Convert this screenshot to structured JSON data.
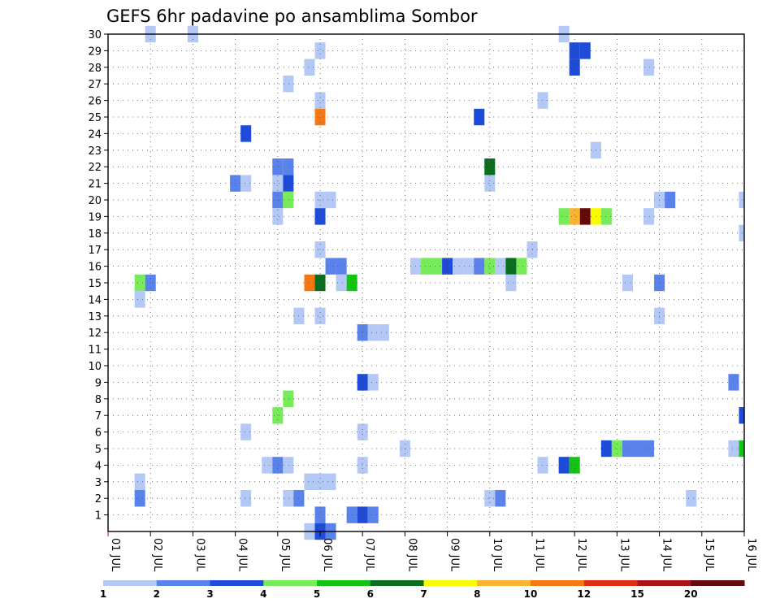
{
  "chart_data": {
    "type": "heatmap",
    "title": "GEFS 6hr padavine po ansamblima Sombor",
    "x_tick_labels": [
      "01 JUL",
      "02 JUL",
      "03 JUL",
      "04 JUL",
      "05 JUL",
      "06 JUL",
      "07 JUL",
      "08 JUL",
      "09 JUL",
      "10 JUL",
      "11 JUL",
      "12 JUL",
      "13 JUL",
      "14 JUL",
      "15 JUL",
      "16 JUL"
    ],
    "y_tick_labels": [
      "1",
      "2",
      "3",
      "4",
      "5",
      "6",
      "7",
      "8",
      "9",
      "10",
      "11",
      "12",
      "13",
      "14",
      "15",
      "16",
      "17",
      "18",
      "19",
      "20",
      "21",
      "22",
      "23",
      "24",
      "25",
      "26",
      "27",
      "28",
      "29",
      "30"
    ],
    "xlim_days": [
      1,
      16
    ],
    "ylim_member": [
      0,
      30
    ],
    "grid": "dotted",
    "color_levels": [
      "1",
      "2",
      "3",
      "4",
      "5",
      "6",
      "7",
      "8",
      "10",
      "12",
      "15",
      "20"
    ],
    "color_bins": [
      {
        "from": 1,
        "to": 2,
        "color": "#b4c8f5"
      },
      {
        "from": 2,
        "to": 3,
        "color": "#5a82eb"
      },
      {
        "from": 3,
        "to": 4,
        "color": "#1e4bd7"
      },
      {
        "from": 4,
        "to": 5,
        "color": "#78eb5a"
      },
      {
        "from": 5,
        "to": 6,
        "color": "#14c314"
      },
      {
        "from": 6,
        "to": 7,
        "color": "#0a6e1e"
      },
      {
        "from": 7,
        "to": 8,
        "color": "#fafa00"
      },
      {
        "from": 8,
        "to": 10,
        "color": "#fab432"
      },
      {
        "from": 10,
        "to": 12,
        "color": "#f57814"
      },
      {
        "from": 12,
        "to": 15,
        "color": "#e12d14"
      },
      {
        "from": 15,
        "to": 20,
        "color": "#aa1414"
      },
      {
        "from": 20,
        "to": null,
        "color": "#640a0a"
      }
    ],
    "cells": [
      [
        2.0,
        30,
        1
      ],
      [
        3.0,
        30,
        1
      ],
      [
        11.75,
        30,
        1
      ],
      [
        6.0,
        29,
        1
      ],
      [
        12.0,
        29,
        3
      ],
      [
        12.25,
        29,
        3
      ],
      [
        5.75,
        28,
        1
      ],
      [
        12.0,
        28,
        3
      ],
      [
        13.75,
        28,
        1
      ],
      [
        5.25,
        27,
        1
      ],
      [
        6.0,
        26,
        1
      ],
      [
        11.25,
        26,
        1
      ],
      [
        6.0,
        25,
        10
      ],
      [
        9.75,
        25,
        3
      ],
      [
        4.25,
        24,
        3
      ],
      [
        12.5,
        23,
        1
      ],
      [
        5.0,
        22,
        2
      ],
      [
        5.25,
        22,
        2
      ],
      [
        10.0,
        22,
        6
      ],
      [
        4.0,
        21,
        2
      ],
      [
        4.25,
        21,
        1
      ],
      [
        5.0,
        21,
        1
      ],
      [
        5.25,
        21,
        3
      ],
      [
        10.0,
        21,
        1
      ],
      [
        5.0,
        20,
        2
      ],
      [
        5.25,
        20,
        4
      ],
      [
        6.0,
        20,
        1
      ],
      [
        6.25,
        20,
        1
      ],
      [
        14.0,
        20,
        1
      ],
      [
        14.25,
        20,
        2
      ],
      [
        16.0,
        20,
        1
      ],
      [
        6.0,
        19,
        3
      ],
      [
        5.0,
        19,
        1
      ],
      [
        11.75,
        19,
        4
      ],
      [
        12.0,
        19,
        8
      ],
      [
        12.25,
        19,
        20
      ],
      [
        12.5,
        19,
        7
      ],
      [
        12.75,
        19,
        4
      ],
      [
        13.75,
        19,
        1
      ],
      [
        16.0,
        18,
        1
      ],
      [
        6.0,
        17,
        1
      ],
      [
        11.0,
        17,
        1
      ],
      [
        6.25,
        16,
        2
      ],
      [
        6.5,
        16,
        2
      ],
      [
        8.25,
        16,
        1
      ],
      [
        8.5,
        16,
        4
      ],
      [
        8.75,
        16,
        4
      ],
      [
        9.0,
        16,
        3
      ],
      [
        9.25,
        16,
        1
      ],
      [
        9.5,
        16,
        1
      ],
      [
        9.75,
        16,
        2
      ],
      [
        10.0,
        16,
        4
      ],
      [
        10.25,
        16,
        1
      ],
      [
        10.5,
        16,
        6
      ],
      [
        10.75,
        16,
        4
      ],
      [
        1.75,
        15,
        4
      ],
      [
        2.0,
        15,
        2
      ],
      [
        5.75,
        15,
        10
      ],
      [
        6.0,
        15,
        6
      ],
      [
        6.5,
        15,
        1
      ],
      [
        6.75,
        15,
        5
      ],
      [
        10.5,
        15,
        1
      ],
      [
        13.25,
        15,
        1
      ],
      [
        14.0,
        15,
        2
      ],
      [
        1.75,
        14,
        1
      ],
      [
        5.5,
        13,
        1
      ],
      [
        6.0,
        13,
        1
      ],
      [
        14.0,
        13,
        1
      ],
      [
        7.0,
        12,
        2
      ],
      [
        7.25,
        12,
        1
      ],
      [
        7.5,
        12,
        1
      ],
      [
        7.0,
        9,
        3
      ],
      [
        7.25,
        9,
        1
      ],
      [
        15.75,
        9,
        2
      ],
      [
        5.25,
        8,
        4
      ],
      [
        5.0,
        7,
        4
      ],
      [
        16.0,
        7,
        3
      ],
      [
        4.25,
        6,
        1
      ],
      [
        7.0,
        6,
        1
      ],
      [
        8.0,
        5,
        1
      ],
      [
        12.75,
        5,
        3
      ],
      [
        13.0,
        5,
        4
      ],
      [
        13.25,
        5,
        2
      ],
      [
        13.5,
        5,
        2
      ],
      [
        13.75,
        5,
        2
      ],
      [
        15.75,
        5,
        1
      ],
      [
        16.0,
        5,
        5
      ],
      [
        4.75,
        4,
        1
      ],
      [
        5.0,
        4,
        2
      ],
      [
        5.25,
        4,
        1
      ],
      [
        7.0,
        4,
        1
      ],
      [
        11.25,
        4,
        1
      ],
      [
        11.75,
        4,
        3
      ],
      [
        12.0,
        4,
        5
      ],
      [
        1.75,
        3,
        1
      ],
      [
        5.75,
        3,
        1
      ],
      [
        6.0,
        3,
        1
      ],
      [
        6.25,
        3,
        1
      ],
      [
        1.75,
        2,
        2
      ],
      [
        4.25,
        2,
        1
      ],
      [
        5.25,
        2,
        1
      ],
      [
        5.5,
        2,
        2
      ],
      [
        10.0,
        2,
        1
      ],
      [
        10.25,
        2,
        2
      ],
      [
        14.75,
        2,
        1
      ],
      [
        6.0,
        1,
        2
      ],
      [
        6.75,
        1,
        2
      ],
      [
        7.0,
        1,
        3
      ],
      [
        7.25,
        1,
        2
      ],
      [
        5.75,
        0,
        1
      ],
      [
        6.0,
        0,
        3
      ],
      [
        6.25,
        0,
        2
      ]
    ]
  }
}
